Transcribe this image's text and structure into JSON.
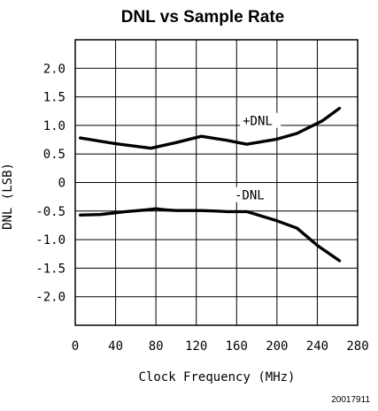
{
  "chart_data": {
    "type": "line",
    "title": "DNL vs Sample Rate",
    "xlabel": "Clock Frequency (MHz)",
    "ylabel": "DNL (LSB)",
    "xlim": [
      0,
      280
    ],
    "ylim": [
      -2.5,
      2.5
    ],
    "xticks": [
      0,
      40,
      80,
      120,
      160,
      200,
      240,
      280
    ],
    "xtick_labels": [
      "0",
      "40",
      "80",
      "120",
      "160",
      "200",
      "240",
      "280"
    ],
    "yticks": [
      2.0,
      1.5,
      1.0,
      0.5,
      0,
      -0.5,
      -1.0,
      -1.5,
      -2.0
    ],
    "ytick_labels": [
      "2.0",
      "1.5",
      "1.0",
      "0.5",
      "0",
      "-0.5",
      "-1.0",
      "-1.5",
      "-2.0"
    ],
    "grid": true,
    "series": [
      {
        "name": "+DNL",
        "x": [
          5,
          40,
          75,
          100,
          125,
          150,
          170,
          200,
          220,
          245,
          262
        ],
        "y": [
          0.78,
          0.68,
          0.6,
          0.7,
          0.81,
          0.74,
          0.67,
          0.76,
          0.86,
          1.08,
          1.3
        ]
      },
      {
        "name": "-DNL",
        "x": [
          5,
          25,
          50,
          70,
          80,
          90,
          100,
          125,
          140,
          150,
          170,
          200,
          220,
          240,
          262
        ],
        "y": [
          -0.57,
          -0.56,
          -0.51,
          -0.48,
          -0.46,
          -0.48,
          -0.49,
          -0.49,
          -0.5,
          -0.51,
          -0.51,
          -0.67,
          -0.8,
          -1.1,
          -1.37
        ]
      }
    ],
    "annotations": [
      {
        "text": "+DNL",
        "series": 0
      },
      {
        "text": "-DNL",
        "series": 1
      }
    ],
    "figure_id": "20017911"
  }
}
